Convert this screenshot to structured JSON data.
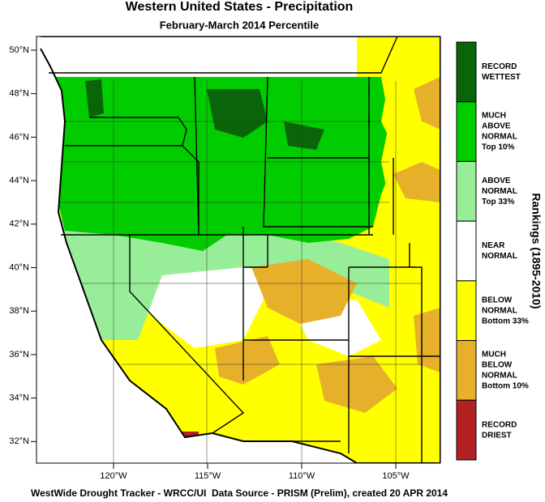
{
  "title": "Western United States - Precipitation",
  "subtitle": "February-March 2014 Percentile",
  "lat_labels": [
    "50°N",
    "48°N",
    "46°N",
    "44°N",
    "42°N",
    "40°N",
    "38°N",
    "36°N",
    "34°N",
    "32°N"
  ],
  "lon_labels": [
    "120°W",
    "115°W",
    "110°W",
    "105°W"
  ],
  "legend": {
    "title": "Rankings (1895-2010)",
    "items": [
      {
        "lines": [
          "RECORD",
          "WETTEST"
        ],
        "color": "#0a640a"
      },
      {
        "lines": [
          "MUCH",
          "ABOVE",
          "NORMAL",
          "Top 10%"
        ],
        "color": "#00cc00"
      },
      {
        "lines": [
          "ABOVE",
          "NORMAL",
          "Top 33%"
        ],
        "color": "#98ee98"
      },
      {
        "lines": [
          "NEAR",
          "NORMAL"
        ],
        "color": "#ffffff"
      },
      {
        "lines": [
          "BELOW",
          "NORMAL",
          "Bottom 33%"
        ],
        "color": "#ffff00"
      },
      {
        "lines": [
          "MUCH",
          "BELOW",
          "NORMAL",
          "Bottom 10%"
        ],
        "color": "#e6b02a"
      },
      {
        "lines": [
          "RECORD",
          "DRIEST"
        ],
        "color": "#b22222"
      }
    ]
  },
  "footer": "WestWide Drought Tracker - WRCC/UI  Data Source - PRISM (Prelim), created 20 APR 2014"
}
